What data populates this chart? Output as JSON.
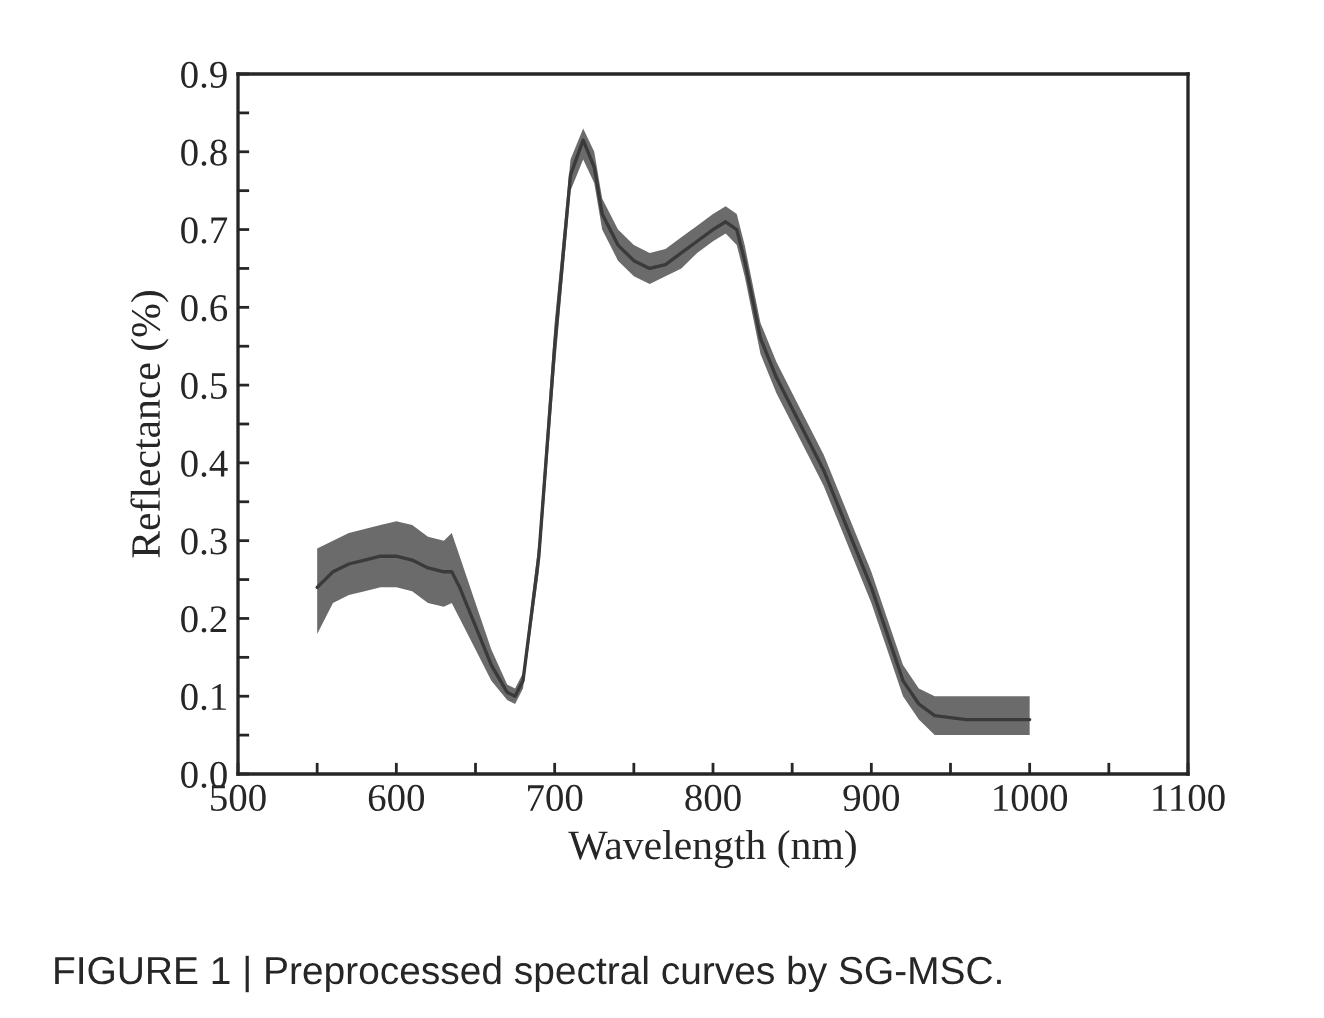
{
  "chart_data": {
    "type": "line",
    "xlabel": "Wavelength (nm)",
    "ylabel": "Reflectance (%)",
    "annotations": [
      "FIGURE 1 | Preprocessed spectral curves by SG-MSC."
    ],
    "xlim": [
      500,
      1100
    ],
    "ylim": [
      0.0,
      0.9
    ],
    "xticks": [
      500,
      {
        "value": 550,
        "label": null
      },
      600,
      {
        "value": 650,
        "label": null
      },
      700,
      {
        "value": 750,
        "label": null
      },
      800,
      {
        "value": 850,
        "label": null
      },
      900,
      {
        "value": 950,
        "label": null
      },
      1000,
      {
        "value": 1050,
        "label": null
      },
      1100
    ],
    "yticks": [
      {
        "value": 0.0,
        "label": "0.0"
      },
      {
        "value": 0.05,
        "label": null
      },
      0.1,
      {
        "value": 0.15,
        "label": null
      },
      0.2,
      {
        "value": 0.25,
        "label": null
      },
      0.3,
      {
        "value": 0.35,
        "label": null
      },
      0.4,
      {
        "value": 0.45,
        "label": null
      },
      0.5,
      {
        "value": 0.55,
        "label": null
      },
      0.6,
      {
        "value": 0.65,
        "label": null
      },
      0.7,
      {
        "value": 0.75,
        "label": null
      },
      0.8,
      {
        "value": 0.85,
        "label": null
      },
      0.9
    ],
    "grid": false,
    "legend": false,
    "line_style": "solid",
    "marker": "none",
    "x": [
      550,
      560,
      570,
      580,
      590,
      600,
      610,
      620,
      630,
      635,
      640,
      650,
      660,
      670,
      675,
      680,
      690,
      700,
      710,
      718,
      725,
      730,
      740,
      750,
      760,
      770,
      780,
      790,
      800,
      808,
      815,
      820,
      830,
      840,
      850,
      860,
      870,
      880,
      890,
      900,
      910,
      920,
      930,
      940,
      960,
      980,
      1000
    ],
    "series": [
      {
        "color": "#3a3a3a",
        "values": [
          0.24,
          0.26,
          0.27,
          0.275,
          0.28,
          0.28,
          0.275,
          0.265,
          0.26,
          0.26,
          0.24,
          0.19,
          0.14,
          0.105,
          0.1,
          0.12,
          0.28,
          0.55,
          0.77,
          0.815,
          0.78,
          0.72,
          0.68,
          0.66,
          0.65,
          0.655,
          0.67,
          0.685,
          0.7,
          0.71,
          0.7,
          0.66,
          0.56,
          0.51,
          0.47,
          0.43,
          0.39,
          0.34,
          0.29,
          0.24,
          0.18,
          0.12,
          0.09,
          0.075,
          0.07,
          0.07,
          0.07
        ],
        "lower": [
          0.18,
          0.22,
          0.23,
          0.235,
          0.24,
          0.24,
          0.235,
          0.22,
          0.215,
          0.22,
          0.2,
          0.16,
          0.12,
          0.095,
          0.09,
          0.11,
          0.26,
          0.52,
          0.75,
          0.79,
          0.76,
          0.7,
          0.66,
          0.64,
          0.63,
          0.64,
          0.65,
          0.67,
          0.685,
          0.695,
          0.68,
          0.64,
          0.54,
          0.49,
          0.45,
          0.41,
          0.37,
          0.32,
          0.27,
          0.22,
          0.16,
          0.1,
          0.07,
          0.05,
          0.05,
          0.05,
          0.05
        ],
        "upper": [
          0.29,
          0.3,
          0.31,
          0.315,
          0.32,
          0.325,
          0.32,
          0.305,
          0.3,
          0.31,
          0.28,
          0.22,
          0.16,
          0.115,
          0.11,
          0.13,
          0.3,
          0.58,
          0.79,
          0.83,
          0.8,
          0.74,
          0.7,
          0.68,
          0.67,
          0.675,
          0.69,
          0.705,
          0.72,
          0.73,
          0.72,
          0.68,
          0.58,
          0.53,
          0.49,
          0.45,
          0.41,
          0.36,
          0.31,
          0.26,
          0.2,
          0.14,
          0.11,
          0.1,
          0.1,
          0.1,
          0.1
        ]
      }
    ]
  }
}
